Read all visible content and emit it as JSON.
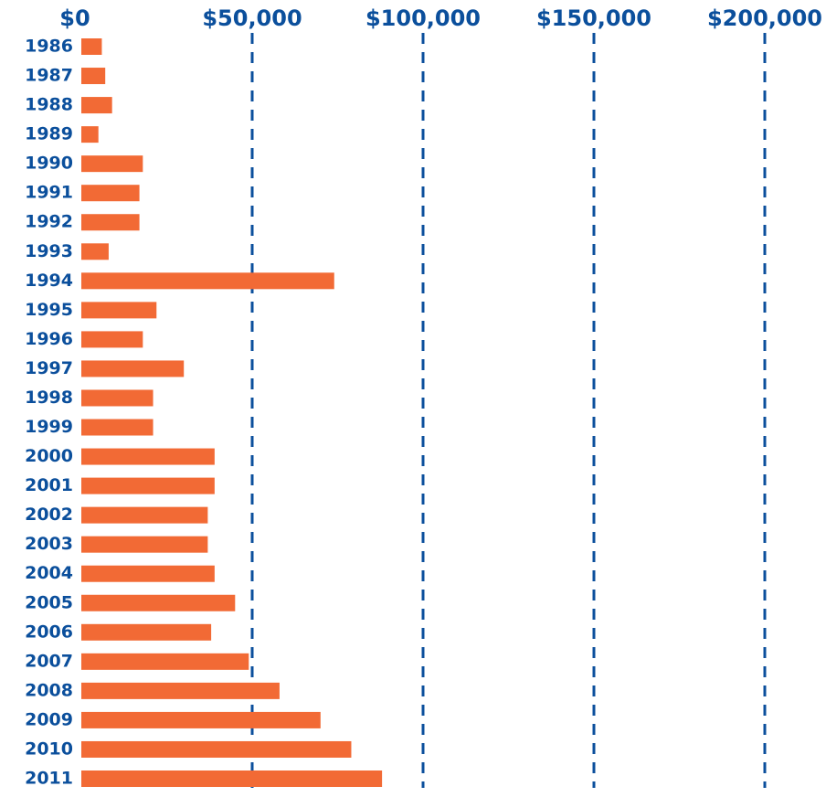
{
  "chart_data": {
    "type": "barh",
    "categories": [
      "1986",
      "1987",
      "1988",
      "1989",
      "1990",
      "1991",
      "1992",
      "1993",
      "1994",
      "1995",
      "1996",
      "1997",
      "1998",
      "1999",
      "2000",
      "2001",
      "2002",
      "2003",
      "2004",
      "2005",
      "2006",
      "2007",
      "2008",
      "2009",
      "2010",
      "2011"
    ],
    "values": [
      6000,
      7000,
      9000,
      5000,
      18000,
      17000,
      17000,
      8000,
      74000,
      22000,
      18000,
      30000,
      21000,
      21000,
      39000,
      39000,
      37000,
      37000,
      39000,
      45000,
      38000,
      49000,
      58000,
      70000,
      79000,
      88000
    ],
    "color": "#f26a35",
    "xlim": [
      0,
      200000
    ],
    "xticks": [
      {
        "value": 0,
        "label": "$0"
      },
      {
        "value": 50000,
        "label": "$50,000"
      },
      {
        "value": 100000,
        "label": "$100,000"
      },
      {
        "value": 150000,
        "label": "$150,000"
      },
      {
        "value": 200000,
        "label": "$200,000"
      }
    ],
    "grid": true,
    "grid_color": "#0b4f9c",
    "label_color": "#0b4f9c"
  }
}
